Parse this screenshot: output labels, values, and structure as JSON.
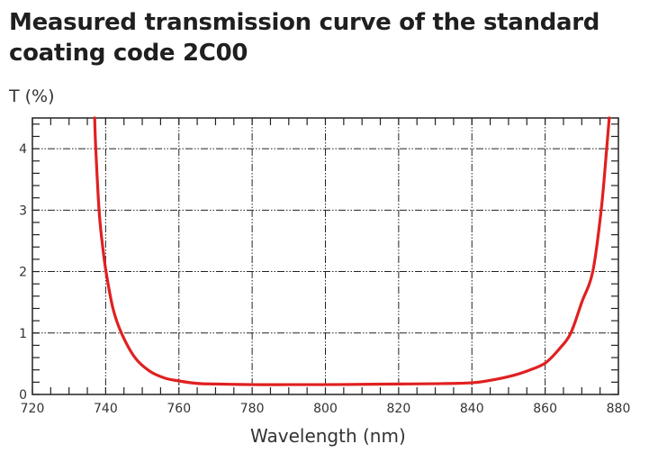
{
  "chart_data": {
    "type": "line",
    "title": "Measured transmission curve of the standard coating code 2C00",
    "xlabel": "Wavelength (nm)",
    "ylabel": "T (%)",
    "xlim": [
      720,
      880
    ],
    "ylim": [
      0,
      4.5
    ],
    "x_ticks": [
      720,
      740,
      760,
      780,
      800,
      820,
      840,
      860,
      880
    ],
    "y_ticks": [
      0,
      1,
      2,
      3,
      4
    ],
    "grid": true,
    "line_color": "#e02020",
    "series": [
      {
        "name": "Transmission",
        "x": [
          737.0,
          737.3,
          738.2,
          739.0,
          740.1,
          742.0,
          744.3,
          748.0,
          752.0,
          756.0,
          760.0,
          765.0,
          770.0,
          780.0,
          790.0,
          800.0,
          810.0,
          820.0,
          830.0,
          840.0,
          845.0,
          850.0,
          855.0,
          860.0,
          864.0,
          867.0,
          870.0,
          873.0,
          875.3,
          876.8,
          877.5
        ],
        "y": [
          4.5,
          4.0,
          3.0,
          2.5,
          2.0,
          1.4,
          1.0,
          0.6,
          0.38,
          0.27,
          0.22,
          0.18,
          0.17,
          0.16,
          0.16,
          0.16,
          0.165,
          0.17,
          0.175,
          0.19,
          0.23,
          0.29,
          0.38,
          0.51,
          0.75,
          1.0,
          1.5,
          2.0,
          3.0,
          4.0,
          4.5
        ]
      }
    ]
  }
}
